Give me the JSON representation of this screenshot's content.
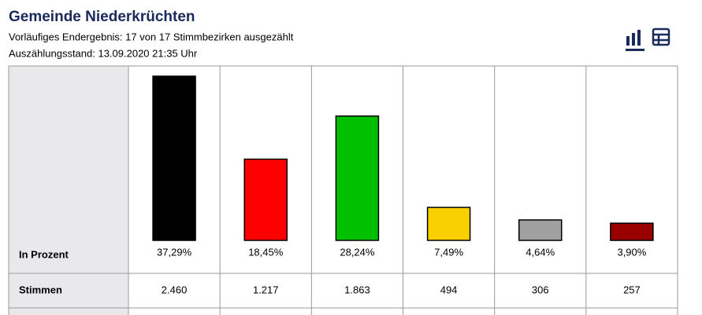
{
  "header": {
    "title": "Gemeinde Niederkrüchten",
    "subtitle": "Vorläufiges Endergebnis: 17 von 17 Stimmbezirken ausgezählt",
    "status": "Auszählungsstand: 13.09.2020 21:35 Uhr"
  },
  "chart_data": {
    "type": "bar",
    "row_label": "In Prozent",
    "values": [
      37.29,
      18.45,
      28.24,
      7.49,
      4.64,
      3.9
    ],
    "value_labels": [
      "37,29%",
      "18,45%",
      "28,24%",
      "7,49%",
      "4,64%",
      "3,90%"
    ],
    "colors": [
      "#000000",
      "#ff0000",
      "#00c000",
      "#fad000",
      "#a0a0a0",
      "#990000"
    ]
  },
  "table": {
    "row_label": "Stimmen",
    "values": [
      "2.460",
      "1.217",
      "1.863",
      "494",
      "306",
      "257"
    ]
  }
}
